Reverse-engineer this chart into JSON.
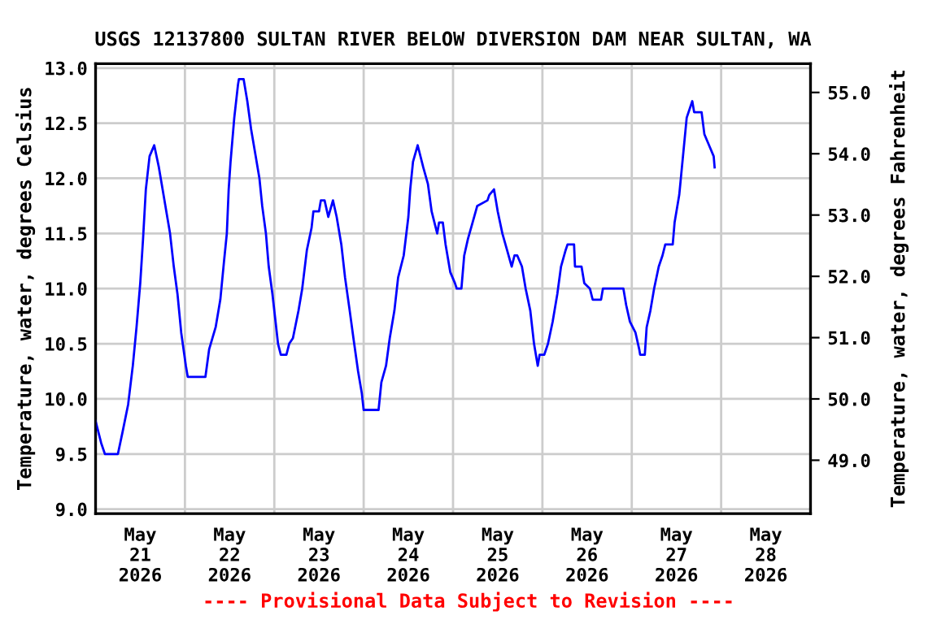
{
  "chart_data": {
    "type": "line",
    "title": "USGS 12137800 SULTAN RIVER BELOW DIVERSION DAM NEAR SULTAN, WA",
    "ylabel": "Temperature, water, degrees Celsius",
    "y2label": "Temperature, water, degrees Fahrenheit",
    "annotations": [
      "---- Provisional Data Subject to Revision ----"
    ],
    "x": [
      "2026-05-21T00:00",
      "2026-05-21T01:30",
      "2026-05-21T02:30",
      "2026-05-21T06:00",
      "2026-05-21T07:15",
      "2026-05-21T08:45",
      "2026-05-21T10:00",
      "2026-05-21T11:00",
      "2026-05-21T12:00",
      "2026-05-21T12:45",
      "2026-05-21T13:30",
      "2026-05-21T14:30",
      "2026-05-21T15:45",
      "2026-05-21T17:00",
      "2026-05-21T18:00",
      "2026-05-21T19:00",
      "2026-05-21T20:00",
      "2026-05-21T21:00",
      "2026-05-21T22:00",
      "2026-05-21T23:00",
      "2026-05-22T00:15",
      "2026-05-22T00:45",
      "2026-05-22T05:30",
      "2026-05-22T06:30",
      "2026-05-22T08:15",
      "2026-05-22T09:30",
      "2026-05-22T10:30",
      "2026-05-22T11:15",
      "2026-05-22T11:45",
      "2026-05-22T12:15",
      "2026-05-22T13:15",
      "2026-05-22T14:15",
      "2026-05-22T14:30",
      "2026-05-22T15:45",
      "2026-05-22T16:45",
      "2026-05-22T17:45",
      "2026-05-22T19:00",
      "2026-05-22T20:00",
      "2026-05-22T20:45",
      "2026-05-22T21:45",
      "2026-05-22T22:30",
      "2026-05-22T23:30",
      "2026-05-23T00:30",
      "2026-05-23T01:00",
      "2026-05-23T01:45",
      "2026-05-23T03:15",
      "2026-05-23T04:00",
      "2026-05-23T05:00",
      "2026-05-23T06:30",
      "2026-05-23T07:30",
      "2026-05-23T08:45",
      "2026-05-23T10:00",
      "2026-05-23T10:30",
      "2026-05-23T12:00",
      "2026-05-23T12:30",
      "2026-05-23T13:30",
      "2026-05-23T14:30",
      "2026-05-23T15:45",
      "2026-05-23T16:45",
      "2026-05-23T18:00",
      "2026-05-23T19:00",
      "2026-05-23T20:15",
      "2026-05-23T21:15",
      "2026-05-23T22:30",
      "2026-05-23T23:30",
      "2026-05-24T00:00",
      "2026-05-24T04:00",
      "2026-05-24T04:45",
      "2026-05-24T06:00",
      "2026-05-24T07:00",
      "2026-05-24T08:15",
      "2026-05-24T09:15",
      "2026-05-24T10:45",
      "2026-05-24T12:00",
      "2026-05-24T12:30",
      "2026-05-24T13:15",
      "2026-05-24T14:30",
      "2026-05-24T16:00",
      "2026-05-24T17:15",
      "2026-05-24T18:15",
      "2026-05-24T19:45",
      "2026-05-24T20:15",
      "2026-05-24T21:15",
      "2026-05-24T22:00",
      "2026-05-24T23:15",
      "2026-05-25T00:30",
      "2026-05-25T01:00",
      "2026-05-25T02:15",
      "2026-05-25T03:00",
      "2026-05-25T04:00",
      "2026-05-25T05:15",
      "2026-05-25T06:30",
      "2026-05-25T09:15",
      "2026-05-25T09:45",
      "2026-05-25T11:00",
      "2026-05-25T12:00",
      "2026-05-25T13:15",
      "2026-05-25T14:30",
      "2026-05-25T15:45",
      "2026-05-25T16:30",
      "2026-05-25T17:15",
      "2026-05-25T18:30",
      "2026-05-25T19:30",
      "2026-05-25T20:45",
      "2026-05-25T21:45",
      "2026-05-25T22:45",
      "2026-05-25T23:15",
      "2026-05-26T00:30",
      "2026-05-26T01:30",
      "2026-05-26T02:45",
      "2026-05-26T04:00",
      "2026-05-26T05:00",
      "2026-05-26T06:15",
      "2026-05-26T06:45",
      "2026-05-26T08:30",
      "2026-05-26T08:45",
      "2026-05-26T10:30",
      "2026-05-26T11:15",
      "2026-05-26T12:45",
      "2026-05-26T13:30",
      "2026-05-26T15:45",
      "2026-05-26T16:15",
      "2026-05-26T21:45",
      "2026-05-26T22:30",
      "2026-05-26T23:30",
      "2026-05-27T01:00",
      "2026-05-27T02:00",
      "2026-05-27T02:15",
      "2026-05-27T03:30",
      "2026-05-27T04:00",
      "2026-05-27T05:00",
      "2026-05-27T06:00",
      "2026-05-27T07:15",
      "2026-05-27T08:15",
      "2026-05-27T09:00",
      "2026-05-27T11:00",
      "2026-05-27T11:30",
      "2026-05-27T12:45",
      "2026-05-27T13:45",
      "2026-05-27T14:45",
      "2026-05-27T15:45",
      "2026-05-27T16:15",
      "2026-05-27T16:45",
      "2026-05-27T18:45",
      "2026-05-27T19:30",
      "2026-05-27T20:45",
      "2026-05-27T22:00",
      "2026-05-27T22:15"
    ],
    "series": [
      {
        "color": "#0000ff",
        "values": [
          9.8,
          9.6,
          9.5,
          9.5,
          9.7,
          9.95,
          10.3,
          10.65,
          11.05,
          11.45,
          11.9,
          12.2,
          12.3,
          12.1,
          11.9,
          11.7,
          11.5,
          11.2,
          10.95,
          10.6,
          10.3,
          10.2,
          10.2,
          10.45,
          10.65,
          10.9,
          11.25,
          11.5,
          11.9,
          12.15,
          12.55,
          12.85,
          12.9,
          12.9,
          12.7,
          12.45,
          12.2,
          12.0,
          11.75,
          11.5,
          11.2,
          10.95,
          10.65,
          10.5,
          10.4,
          10.4,
          10.5,
          10.55,
          10.8,
          11.0,
          11.35,
          11.55,
          11.7,
          11.7,
          11.8,
          11.8,
          11.65,
          11.8,
          11.65,
          11.4,
          11.1,
          10.8,
          10.55,
          10.25,
          10.05,
          9.9,
          9.9,
          10.15,
          10.3,
          10.55,
          10.8,
          11.1,
          11.3,
          11.65,
          11.9,
          12.15,
          12.3,
          12.1,
          11.95,
          11.7,
          11.5,
          11.6,
          11.6,
          11.4,
          11.15,
          11.05,
          11.0,
          11.0,
          11.3,
          11.45,
          11.6,
          11.75,
          11.8,
          11.85,
          11.9,
          11.7,
          11.5,
          11.35,
          11.2,
          11.3,
          11.3,
          11.2,
          11.0,
          10.8,
          10.5,
          10.3,
          10.4,
          10.4,
          10.5,
          10.7,
          10.95,
          11.2,
          11.35,
          11.4,
          11.4,
          11.2,
          11.2,
          11.05,
          11.0,
          10.9,
          10.9,
          11.0,
          11.0,
          10.85,
          10.7,
          10.6,
          10.45,
          10.4,
          10.4,
          10.65,
          10.8,
          11.0,
          11.2,
          11.3,
          11.4,
          11.4,
          11.6,
          11.85,
          12.2,
          12.55,
          12.65,
          12.7,
          12.6,
          12.6,
          12.4,
          12.3,
          12.2,
          12.1
        ]
      }
    ],
    "xlim": [
      "2026-05-21T00:00",
      "2026-05-29T00:00"
    ],
    "xticks": [
      {
        "value": "2026-05-21T12:00",
        "label": "May\n21\n2026"
      },
      {
        "value": "2026-05-22T12:00",
        "label": "May\n22\n2026"
      },
      {
        "value": "2026-05-23T12:00",
        "label": "May\n23\n2026"
      },
      {
        "value": "2026-05-24T12:00",
        "label": "May\n24\n2026"
      },
      {
        "value": "2026-05-25T12:00",
        "label": "May\n25\n2026"
      },
      {
        "value": "2026-05-26T12:00",
        "label": "May\n26\n2026"
      },
      {
        "value": "2026-05-27T12:00",
        "label": "May\n27\n2026"
      },
      {
        "value": "2026-05-28T12:00",
        "label": "May\n28\n2026"
      },
      {
        "value": "2026-05-22T00:00",
        "label": null
      },
      {
        "value": "2026-05-23T00:00",
        "label": null
      },
      {
        "value": "2026-05-24T00:00",
        "label": null
      },
      {
        "value": "2026-05-25T00:00",
        "label": null
      },
      {
        "value": "2026-05-26T00:00",
        "label": null
      },
      {
        "value": "2026-05-27T00:00",
        "label": null
      },
      {
        "value": "2026-05-28T00:00",
        "label": null
      }
    ],
    "ylim": [
      8.96,
      13.04
    ],
    "yticks": [
      {
        "value": 9,
        "label": "9.0"
      },
      {
        "value": 9.5,
        "label": "9.5"
      },
      {
        "value": 10,
        "label": "10.0"
      },
      {
        "value": 10.5,
        "label": "10.5"
      },
      {
        "value": 11,
        "label": "11.0"
      },
      {
        "value": 11.5,
        "label": "11.5"
      },
      {
        "value": 12,
        "label": "12.0"
      },
      {
        "value": 12.5,
        "label": "12.5"
      },
      {
        "value": 13,
        "label": "13.0"
      }
    ],
    "y2lim": [
      48.13,
      55.47
    ],
    "y2ticks": [
      {
        "value": 49,
        "label": "49.0"
      },
      {
        "value": 50,
        "label": "50.0"
      },
      {
        "value": 51,
        "label": "51.0"
      },
      {
        "value": 52,
        "label": "52.0"
      },
      {
        "value": 53,
        "label": "53.0"
      },
      {
        "value": 54,
        "label": "54.0"
      },
      {
        "value": 55,
        "label": "55.0"
      }
    ],
    "grid": true,
    "legend": false,
    "line_style": "solid",
    "marker": "none"
  }
}
